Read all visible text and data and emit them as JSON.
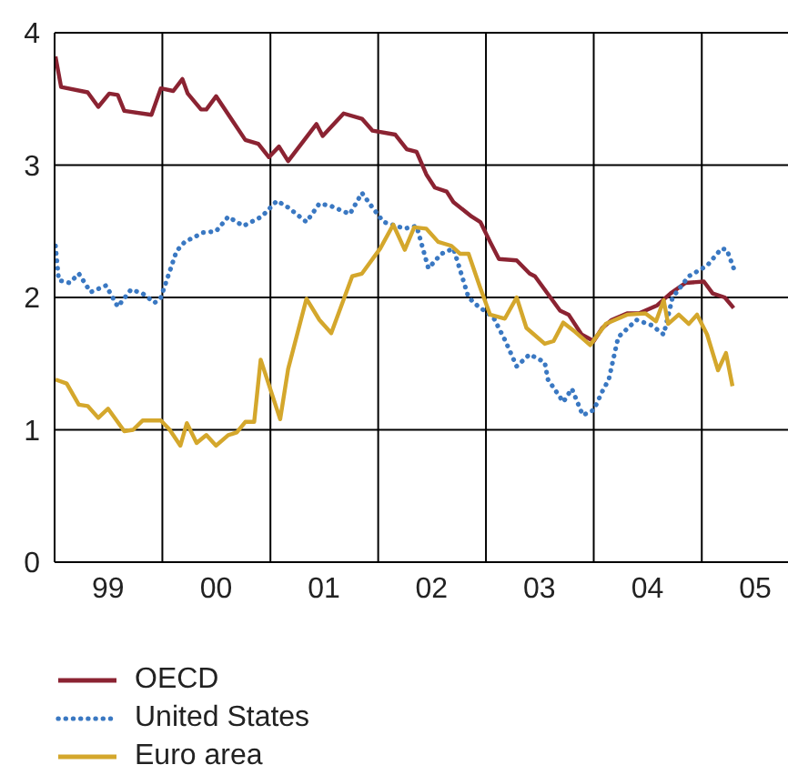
{
  "chart_data": {
    "type": "line",
    "xlim": [
      "1999-01-01",
      "2005-10-20"
    ],
    "xticks": [
      {
        "value": "1999",
        "label": null
      },
      {
        "value": "1999-07-01",
        "label": "99"
      },
      {
        "value": "2000",
        "label": null
      },
      {
        "value": "2000-07-01",
        "label": "00"
      },
      {
        "value": "2001",
        "label": null
      },
      {
        "value": "2001-07-01",
        "label": "01"
      },
      {
        "value": "2002",
        "label": null
      },
      {
        "value": "2002-07-01",
        "label": "02"
      },
      {
        "value": "2003",
        "label": null
      },
      {
        "value": "2003-07-01",
        "label": "03"
      },
      {
        "value": "2004",
        "label": null
      },
      {
        "value": "2004-07-01",
        "label": "04"
      },
      {
        "value": "2005",
        "label": null
      },
      {
        "value": "2005-07-01",
        "label": "05"
      }
    ],
    "ylim": [
      0,
      4
    ],
    "yticks": [
      0,
      1,
      2,
      3,
      4
    ],
    "grid": true,
    "legend": "bottom left",
    "marker": "none",
    "series": [
      {
        "name": "OECD",
        "color": "#8b2332",
        "line_style": "solid",
        "x": [
          "1999-01-04",
          "1999-01-23",
          "1999-04-23",
          "1999-05-29",
          "1999-07-05",
          "1999-08-03",
          "1999-08-25",
          "1999-11-25",
          "1999-12-27",
          "2000-02-07",
          "2000-03-09",
          "2000-03-27",
          "2000-05-11",
          "2000-05-29",
          "2000-07-01",
          "2000-10-08",
          "2000-11-21",
          "2000-12-27",
          "2001-01-30",
          "2001-03-02",
          "2001-06-06",
          "2001-06-27",
          "2001-09-06",
          "2001-11-07",
          "2001-12-13",
          "2002-02-28",
          "2002-04-08",
          "2002-05-11",
          "2002-06-13",
          "2002-07-12",
          "2002-08-21",
          "2002-09-13",
          "2002-11-14",
          "2002-12-13",
          "2003-01-15",
          "2003-02-14",
          "2003-04-15",
          "2003-05-29",
          "2003-06-16",
          "2003-09-09",
          "2003-10-08",
          "2003-11-21",
          "2004-01-01",
          "2004-01-30",
          "2004-03-02",
          "2004-04-23",
          "2004-06-02",
          "2004-08-03",
          "2004-09-17",
          "2004-11-07",
          "2005-01-08",
          "2005-02-07",
          "2005-03-20",
          "2005-04-19"
        ],
        "values": [
          3.82,
          3.59,
          3.55,
          3.44,
          3.54,
          3.53,
          3.41,
          3.38,
          3.58,
          3.56,
          3.65,
          3.54,
          3.42,
          3.42,
          3.52,
          3.19,
          3.16,
          3.06,
          3.14,
          3.03,
          3.31,
          3.22,
          3.39,
          3.35,
          3.26,
          3.23,
          3.12,
          3.1,
          2.93,
          2.83,
          2.8,
          2.72,
          2.61,
          2.57,
          2.42,
          2.29,
          2.28,
          2.18,
          2.16,
          1.9,
          1.87,
          1.72,
          1.67,
          1.77,
          1.83,
          1.88,
          1.88,
          1.94,
          2.03,
          2.11,
          2.12,
          2.03,
          2.0,
          1.92
        ]
      },
      {
        "name": "United States",
        "color": "#3a78c2",
        "line_style": "dotted",
        "x": [
          "1999-01-04",
          "1999-01-15",
          "1999-02-21",
          "1999-03-24",
          "1999-05-03",
          "1999-06-24",
          "1999-08-03",
          "1999-09-17",
          "1999-10-26",
          "1999-12-06",
          "1999-12-27",
          "2000-02-18",
          "2000-03-17",
          "2000-05-18",
          "2000-07-01",
          "2000-08-11",
          "2000-10-01",
          "2000-12-02",
          "2001-01-23",
          "2001-03-02",
          "2001-05-03",
          "2001-06-16",
          "2001-07-26",
          "2001-09-27",
          "2001-11-07",
          "2001-12-09",
          "2002-01-19",
          "2002-04-01",
          "2002-05-11",
          "2002-06-20",
          "2002-08-03",
          "2002-09-13",
          "2002-11-03",
          "2002-12-02",
          "2003-01-26",
          "2003-03-06",
          "2003-04-15",
          "2003-05-29",
          "2003-07-19",
          "2003-07-30",
          "2003-09-20",
          "2003-10-19",
          "2003-11-25",
          "2004-01-01",
          "2004-01-30",
          "2004-02-21",
          "2004-03-24",
          "2004-05-25",
          "2004-07-15",
          "2004-08-25",
          "2004-09-24",
          "2004-11-18",
          "2005-01-19",
          "2005-03-09",
          "2005-03-27",
          "2005-04-19"
        ],
        "values": [
          2.39,
          2.13,
          2.11,
          2.18,
          2.04,
          2.09,
          1.93,
          2.06,
          2.03,
          1.96,
          2.0,
          2.35,
          2.42,
          2.49,
          2.5,
          2.61,
          2.54,
          2.61,
          2.73,
          2.68,
          2.57,
          2.71,
          2.69,
          2.63,
          2.79,
          2.69,
          2.57,
          2.52,
          2.54,
          2.22,
          2.33,
          2.37,
          2.0,
          1.94,
          1.85,
          1.68,
          1.48,
          1.57,
          1.51,
          1.38,
          1.21,
          1.31,
          1.11,
          1.15,
          1.29,
          1.38,
          1.7,
          1.83,
          1.79,
          1.72,
          2.0,
          2.16,
          2.24,
          2.37,
          2.36,
          2.22
        ]
      },
      {
        "name": "Euro area",
        "color": "#d4a72c",
        "line_style": "solid",
        "x": [
          "1999-01-04",
          "1999-02-11",
          "1999-03-24",
          "1999-04-23",
          "1999-05-29",
          "1999-07-01",
          "1999-08-25",
          "1999-09-24",
          "1999-10-26",
          "1999-12-27",
          "2000-01-26",
          "2000-03-02",
          "2000-03-24",
          "2000-04-26",
          "2000-05-29",
          "2000-07-01",
          "2000-08-11",
          "2000-09-09",
          "2000-10-08",
          "2000-11-07",
          "2000-11-29",
          "2001-02-03",
          "2001-03-02",
          "2001-05-03",
          "2001-06-16",
          "2001-07-26",
          "2001-10-05",
          "2001-11-07",
          "2002-01-08",
          "2002-02-21",
          "2002-04-01",
          "2002-05-03",
          "2002-06-13",
          "2002-07-23",
          "2002-09-06",
          "2002-10-05",
          "2002-11-03",
          "2002-12-13",
          "2003-01-15",
          "2003-03-06",
          "2003-04-15",
          "2003-05-18",
          "2003-07-19",
          "2003-08-18",
          "2003-09-20",
          "2003-10-30",
          "2003-12-20",
          "2004-02-11",
          "2004-04-23",
          "2004-06-24",
          "2004-07-30",
          "2004-08-25",
          "2004-09-09",
          "2004-10-15",
          "2004-11-18",
          "2004-12-16",
          "2005-01-19",
          "2005-02-25",
          "2005-03-24",
          "2005-04-15"
        ],
        "values": [
          1.38,
          1.35,
          1.19,
          1.18,
          1.09,
          1.16,
          0.99,
          1.0,
          1.07,
          1.07,
          1.0,
          0.88,
          1.05,
          0.9,
          0.96,
          0.88,
          0.96,
          0.98,
          1.06,
          1.06,
          1.53,
          1.08,
          1.46,
          1.99,
          1.83,
          1.73,
          2.16,
          2.18,
          2.37,
          2.55,
          2.36,
          2.53,
          2.52,
          2.42,
          2.39,
          2.33,
          2.33,
          2.07,
          1.87,
          1.84,
          2.0,
          1.77,
          1.65,
          1.67,
          1.81,
          1.74,
          1.64,
          1.8,
          1.87,
          1.88,
          1.82,
          1.98,
          1.8,
          1.87,
          1.8,
          1.87,
          1.72,
          1.45,
          1.58,
          1.33
        ]
      }
    ]
  }
}
